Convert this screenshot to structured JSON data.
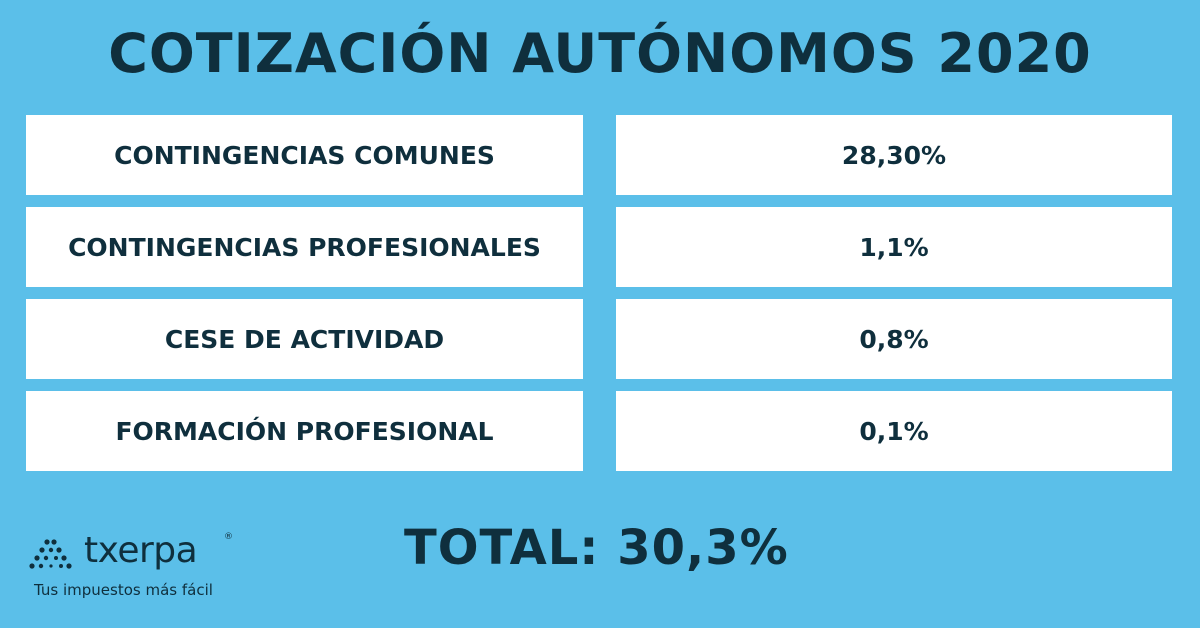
{
  "title": "COTIZACIÓN AUTÓNOMOS 2020",
  "rows": [
    {
      "label": "CONTINGENCIAS COMUNES",
      "value": "28,30%"
    },
    {
      "label": "CONTINGENCIAS PROFESIONALES",
      "value": "1,1%"
    },
    {
      "label": "CESE DE ACTIVIDAD",
      "value": "0,8%"
    },
    {
      "label": "FORMACIÓN PROFESIONAL",
      "value": "0,1%"
    }
  ],
  "total": "TOTAL: 30,3%",
  "brand": {
    "name": "txerpa",
    "registered": "®",
    "tagline": "Tus impuestos más fácil",
    "icon": "txerpa-logo-icon"
  },
  "colors": {
    "background": "#5bbfe9",
    "text": "#0f2f3d",
    "cell": "#ffffff"
  }
}
